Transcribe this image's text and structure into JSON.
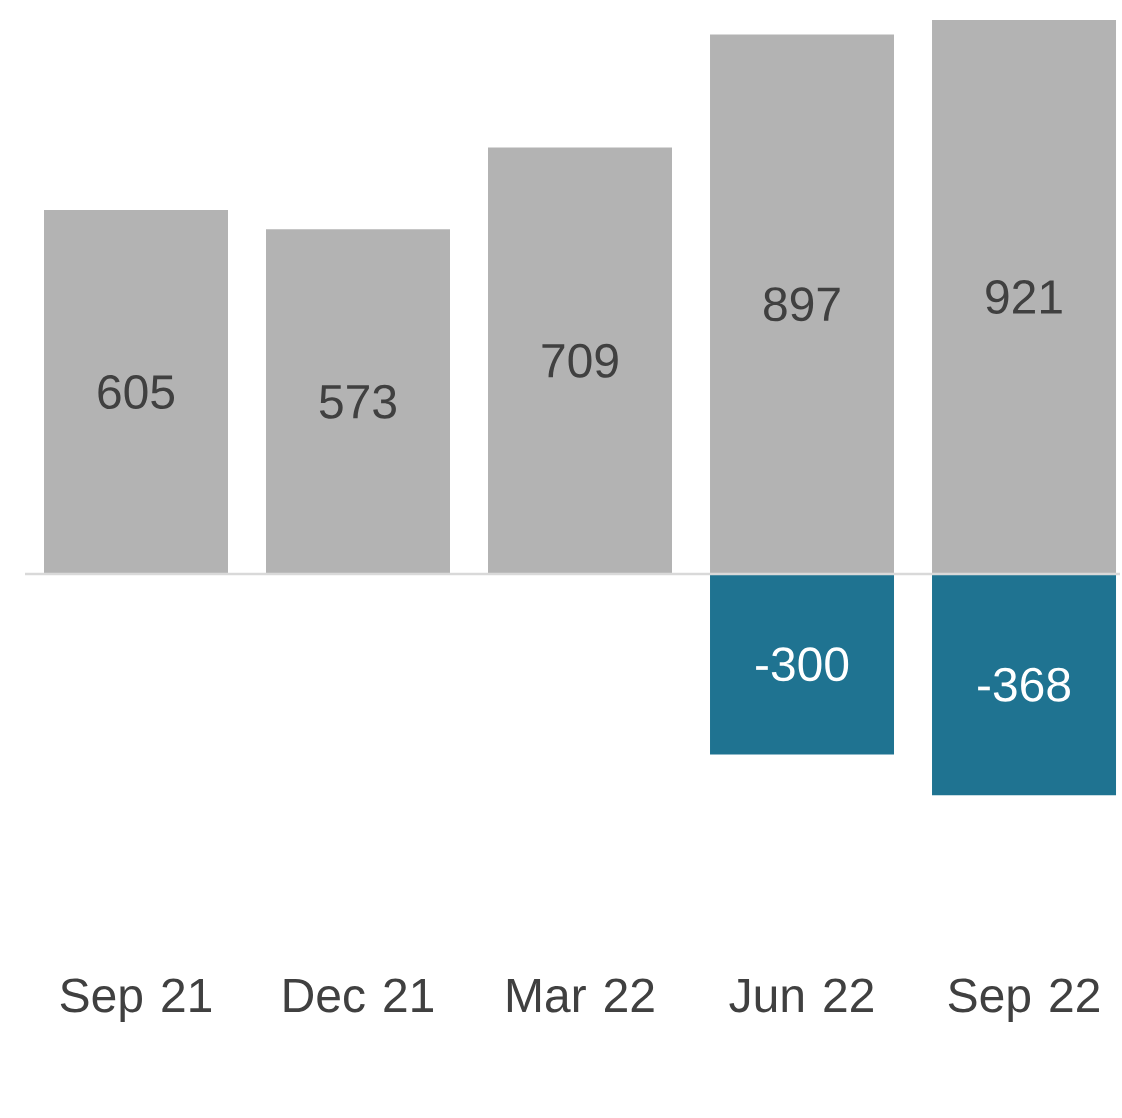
{
  "chart_data": {
    "type": "bar",
    "stacked": true,
    "data_labels": true,
    "categories": [
      "Sep 21",
      "Dec 21",
      "Mar 22",
      "Jun 22",
      "Sep 22"
    ],
    "series": [
      {
        "color": "#b3b3b3",
        "values": [
          605,
          573,
          709,
          897,
          921
        ]
      },
      {
        "color": "#1f7391",
        "values": [
          null,
          null,
          null,
          -300,
          -368
        ]
      }
    ]
  }
}
